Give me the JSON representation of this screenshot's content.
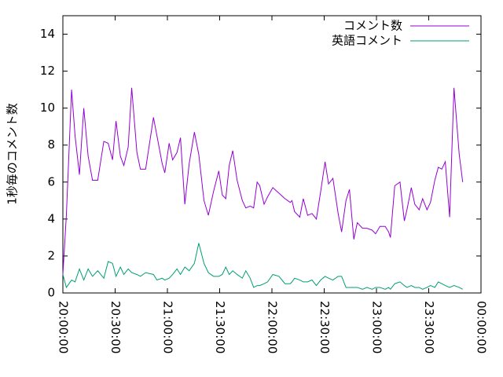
{
  "chart_data": {
    "type": "line",
    "y_label": "1秒毎のコメント数",
    "x": [
      0,
      2,
      5,
      7,
      9.5,
      12,
      14.5,
      17,
      20,
      23.5,
      26,
      28.5,
      30.5,
      33,
      35,
      37.5,
      39.5,
      42.5,
      44.5,
      47.5,
      52,
      54,
      57,
      58.5,
      61,
      63,
      65.5,
      67.5,
      70,
      72.5,
      75.5,
      78,
      81,
      83.5,
      86.5,
      89.5,
      91.5,
      93.5,
      95.5,
      97.5,
      100,
      103,
      105,
      107.5,
      109.5,
      111.5,
      113,
      115.5,
      117.5,
      120.5,
      124,
      127.5,
      130.5,
      131.5,
      133,
      136,
      138,
      140.5,
      143,
      145.5,
      148,
      150.5,
      152.5,
      155,
      158,
      160,
      162.5,
      164.5,
      167,
      169,
      172,
      174.5,
      177.5,
      179.5,
      182,
      185,
      187,
      188,
      190.5,
      193.5,
      196,
      197.5,
      200,
      202,
      204.5,
      206.5,
      209,
      211,
      213.5,
      215.5,
      217.5,
      219.5,
      222,
      224.5,
      227.5,
      229.5
    ],
    "series": [
      {
        "name": "コメント数",
        "color": "#9400d3",
        "values": [
          1.0,
          4.2,
          11.0,
          8.5,
          6.4,
          10.0,
          7.4,
          6.1,
          6.1,
          8.2,
          8.1,
          7.2,
          9.3,
          7.4,
          6.9,
          7.9,
          11.1,
          7.6,
          6.7,
          6.7,
          9.5,
          8.5,
          7.0,
          6.5,
          8.1,
          7.2,
          7.6,
          8.4,
          4.8,
          7.0,
          8.7,
          7.5,
          5.0,
          4.2,
          5.5,
          6.6,
          5.3,
          5.1,
          6.9,
          7.7,
          6.1,
          5.0,
          4.6,
          4.7,
          4.6,
          6.0,
          5.8,
          4.8,
          5.2,
          5.7,
          5.4,
          5.1,
          4.9,
          5.0,
          4.4,
          4.1,
          5.1,
          4.2,
          4.3,
          4.0,
          5.5,
          7.1,
          5.9,
          6.2,
          4.3,
          3.3,
          5.0,
          5.6,
          2.9,
          3.8,
          3.5,
          3.5,
          3.4,
          3.2,
          3.6,
          3.6,
          3.3,
          3.0,
          5.8,
          6.0,
          3.9,
          4.5,
          5.7,
          4.8,
          4.5,
          5.1,
          4.5,
          4.9,
          6.1,
          6.8,
          6.7,
          7.1,
          4.1,
          11.1,
          7.5,
          6.0
        ]
      },
      {
        "name": "英語コメント",
        "color": "#009e73",
        "values": [
          1.0,
          0.3,
          0.7,
          0.6,
          1.3,
          0.7,
          1.3,
          0.9,
          1.2,
          0.8,
          1.7,
          1.6,
          0.9,
          1.4,
          1.0,
          1.3,
          1.1,
          1.0,
          0.9,
          1.1,
          1.0,
          0.7,
          0.8,
          0.7,
          0.8,
          1.0,
          1.3,
          1.0,
          1.4,
          1.2,
          1.6,
          2.7,
          1.6,
          1.1,
          0.9,
          0.9,
          1.0,
          1.4,
          1.0,
          1.2,
          1.0,
          0.8,
          1.2,
          0.8,
          0.3,
          0.4,
          0.4,
          0.5,
          0.6,
          1.0,
          0.9,
          0.5,
          0.5,
          0.6,
          0.8,
          0.7,
          0.6,
          0.6,
          0.7,
          0.4,
          0.7,
          0.9,
          0.8,
          0.7,
          0.9,
          0.9,
          0.3,
          0.3,
          0.3,
          0.3,
          0.2,
          0.3,
          0.2,
          0.3,
          0.3,
          0.2,
          0.3,
          0.2,
          0.5,
          0.6,
          0.4,
          0.3,
          0.4,
          0.3,
          0.3,
          0.2,
          0.3,
          0.4,
          0.3,
          0.6,
          0.5,
          0.4,
          0.3,
          0.4,
          0.3,
          0.2
        ]
      }
    ],
    "xlim": [
      0,
      240
    ],
    "xticks": [
      {
        "value": 0,
        "label": "20:00:00"
      },
      {
        "value": 30,
        "label": "20:30:00"
      },
      {
        "value": 60,
        "label": "21:00:00"
      },
      {
        "value": 90,
        "label": "21:30:00"
      },
      {
        "value": 120,
        "label": "22:00:00"
      },
      {
        "value": 150,
        "label": "22:30:00"
      },
      {
        "value": 180,
        "label": "23:00:00"
      },
      {
        "value": 210,
        "label": "23:30:00"
      },
      {
        "value": 240,
        "label": "00:00:00"
      }
    ],
    "ylim": [
      0,
      15
    ],
    "yticks": [
      0,
      2,
      4,
      6,
      8,
      10,
      12,
      14
    ],
    "legend": "top-right"
  }
}
